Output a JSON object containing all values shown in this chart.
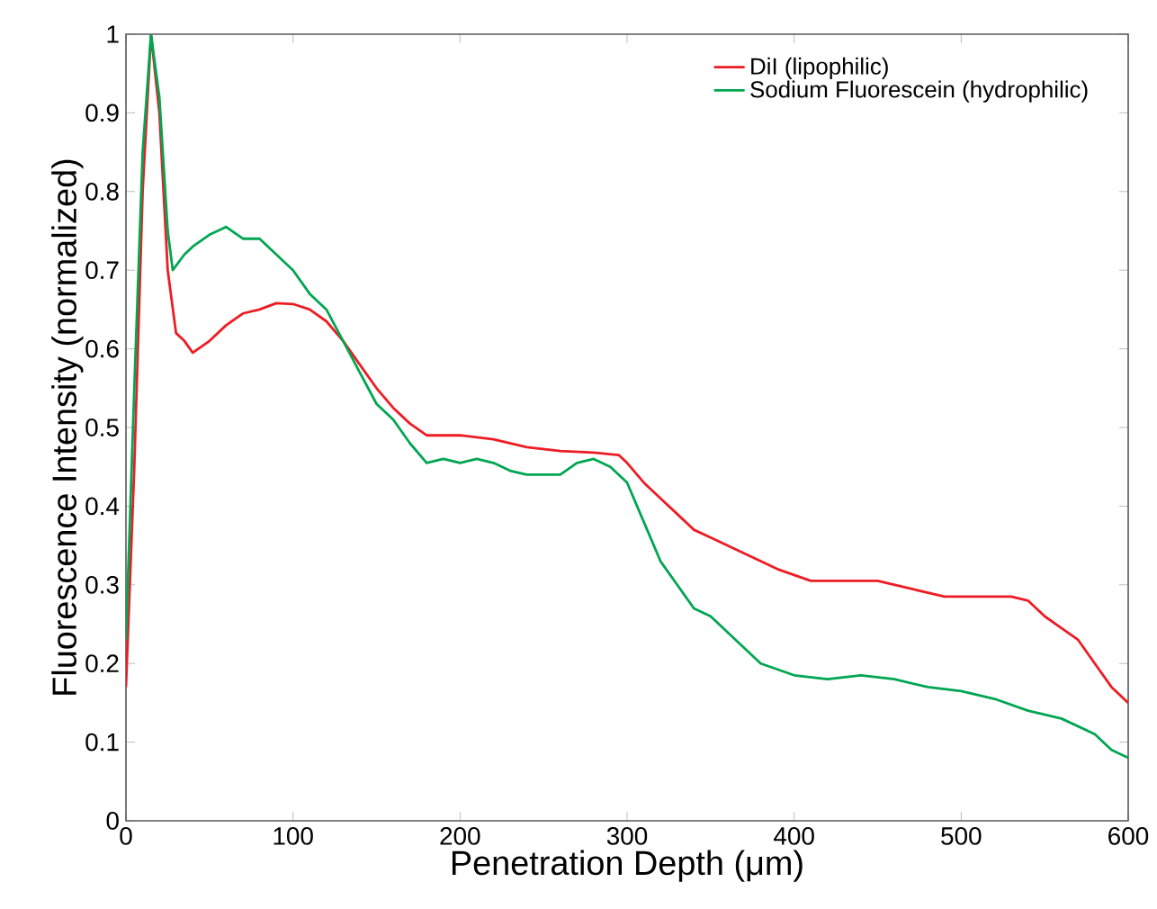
{
  "chart_data": {
    "type": "line",
    "xlabel": "Penetration Depth (μm)",
    "ylabel": "Fluorescence Intensity (normalized)",
    "xlim": [
      0,
      600
    ],
    "xticks": [
      0,
      100,
      200,
      300,
      400,
      500,
      600
    ],
    "ylim": [
      0,
      1
    ],
    "yticks": [
      0,
      0.1,
      0.2,
      0.3,
      0.4,
      0.5,
      0.6,
      0.7,
      0.8,
      0.9,
      1
    ],
    "legend": "top right",
    "grid": false,
    "line_style": "solid",
    "marker": "none",
    "series": [
      {
        "name": "DiI (lipophilic)",
        "color": "#ed1c24",
        "x": [
          0,
          5,
          10,
          15,
          20,
          25,
          30,
          35,
          40,
          50,
          60,
          70,
          80,
          90,
          100,
          110,
          120,
          130,
          140,
          150,
          160,
          170,
          180,
          200,
          220,
          240,
          260,
          280,
          295,
          300,
          310,
          320,
          330,
          340,
          350,
          370,
          390,
          410,
          430,
          450,
          470,
          490,
          510,
          530,
          540,
          550,
          560,
          570,
          580,
          590,
          600
        ],
        "values": [
          0.17,
          0.45,
          0.8,
          1.0,
          0.9,
          0.7,
          0.62,
          0.61,
          0.595,
          0.61,
          0.63,
          0.645,
          0.65,
          0.658,
          0.657,
          0.65,
          0.635,
          0.61,
          0.58,
          0.55,
          0.525,
          0.505,
          0.49,
          0.49,
          0.485,
          0.475,
          0.47,
          0.468,
          0.465,
          0.455,
          0.43,
          0.41,
          0.39,
          0.37,
          0.36,
          0.34,
          0.32,
          0.305,
          0.305,
          0.305,
          0.295,
          0.285,
          0.285,
          0.285,
          0.28,
          0.26,
          0.245,
          0.23,
          0.2,
          0.17,
          0.15
        ]
      },
      {
        "name": "Sodium Fluorescein (hydrophilic)",
        "color": "#00a651",
        "x": [
          0,
          5,
          10,
          15,
          20,
          25,
          28,
          35,
          40,
          50,
          60,
          70,
          80,
          90,
          100,
          110,
          120,
          130,
          140,
          150,
          160,
          170,
          180,
          190,
          200,
          210,
          220,
          230,
          240,
          260,
          270,
          280,
          290,
          300,
          310,
          320,
          330,
          340,
          350,
          360,
          370,
          380,
          400,
          420,
          440,
          460,
          480,
          500,
          520,
          540,
          560,
          580,
          590,
          600
        ],
        "values": [
          0.23,
          0.55,
          0.85,
          1.0,
          0.92,
          0.75,
          0.7,
          0.72,
          0.73,
          0.745,
          0.755,
          0.74,
          0.74,
          0.72,
          0.7,
          0.67,
          0.65,
          0.61,
          0.57,
          0.53,
          0.51,
          0.48,
          0.455,
          0.46,
          0.455,
          0.46,
          0.455,
          0.445,
          0.44,
          0.44,
          0.455,
          0.46,
          0.45,
          0.43,
          0.38,
          0.33,
          0.3,
          0.27,
          0.26,
          0.24,
          0.22,
          0.2,
          0.185,
          0.18,
          0.185,
          0.18,
          0.17,
          0.165,
          0.155,
          0.14,
          0.13,
          0.11,
          0.09,
          0.08
        ]
      }
    ]
  }
}
